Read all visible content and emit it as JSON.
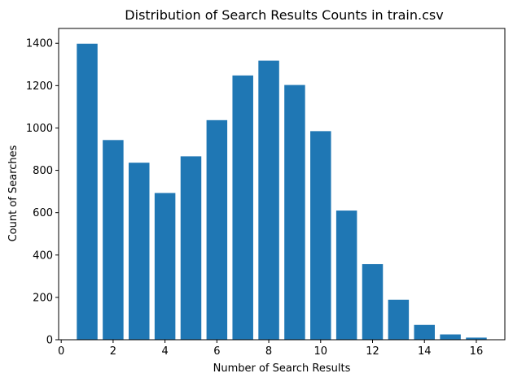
{
  "chart_data": {
    "type": "bar",
    "title": "Distribution of Search Results Counts in train.csv",
    "xlabel": "Number of Search Results",
    "ylabel": "Count of Searches",
    "x": [
      1,
      2,
      3,
      4,
      5,
      6,
      7,
      8,
      9,
      10,
      11,
      12,
      13,
      14,
      15,
      16
    ],
    "values": [
      1398,
      943,
      836,
      693,
      866,
      1037,
      1248,
      1318,
      1203,
      985,
      610,
      357,
      189,
      70,
      25,
      10
    ],
    "xlim": [
      -0.1,
      17.1
    ],
    "ylim": [
      0,
      1470
    ],
    "xticks": [
      0,
      2,
      4,
      6,
      8,
      10,
      12,
      14,
      16
    ],
    "yticks": [
      0,
      200,
      400,
      600,
      800,
      1000,
      1200,
      1400
    ],
    "bar_color": "#1f77b4",
    "grid": false
  }
}
